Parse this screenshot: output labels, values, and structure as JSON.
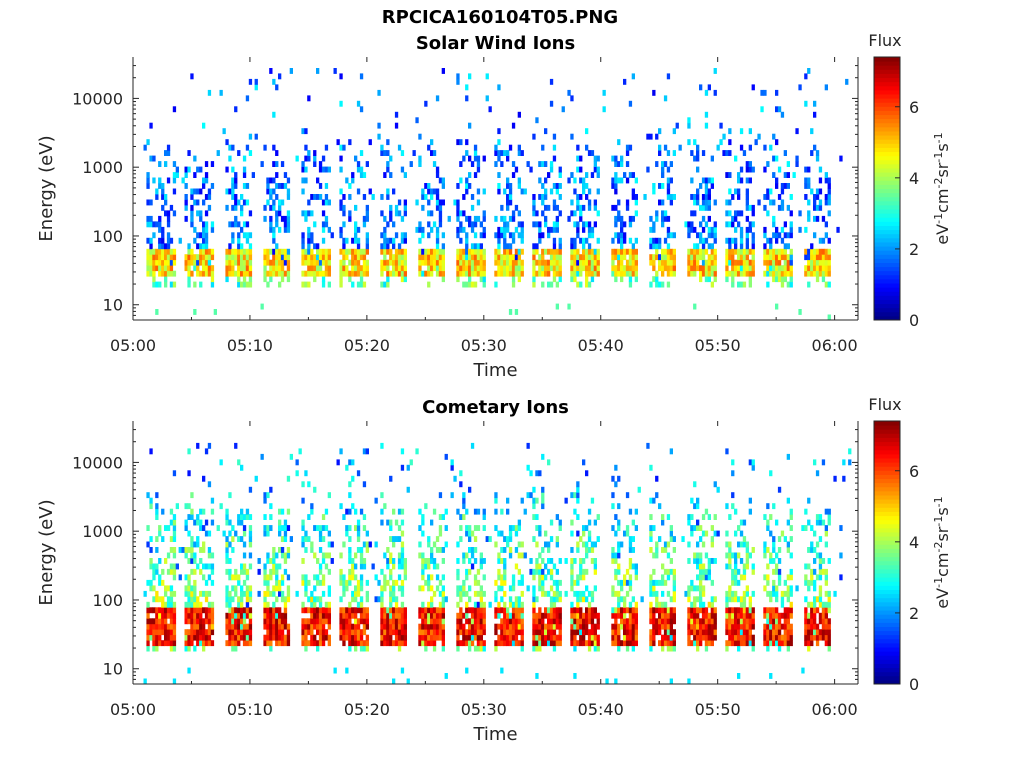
{
  "figure": {
    "title": "RPCICA160104T05.PNG"
  },
  "colors": {
    "background": "#ffffff",
    "axis": "#262626",
    "colormap": [
      "#00008f",
      "#0000ff",
      "#007fff",
      "#00ffff",
      "#7fff7f",
      "#ffff00",
      "#ff7f00",
      "#ff0000",
      "#7f0000"
    ]
  },
  "chart_data": [
    {
      "type": "heatmap",
      "title": "Solar Wind Ions",
      "xlabel": "Time",
      "ylabel": "Energy (eV)",
      "x_range": [
        "05:00",
        "06:02"
      ],
      "x_ticks": [
        "05:00",
        "05:10",
        "05:20",
        "05:30",
        "05:40",
        "05:50",
        "06:00"
      ],
      "y_scale": "log",
      "y_range": [
        6,
        40000
      ],
      "y_ticks": [
        "10",
        "100",
        "1000",
        "10000"
      ],
      "colorbar": {
        "label": "eV-1cm-2sr-1s-1",
        "header": "Flux",
        "ticks": [
          "0",
          "2",
          "4",
          "6"
        ],
        "range": [
          0,
          7.4
        ]
      },
      "pattern": {
        "period_min": 3.3,
        "first_burst_min": 2.0,
        "peak_energy_eV": 40,
        "peak_flux_range": [
          3.8,
          5.8
        ],
        "upper_energy_eV": 30000,
        "background_flux_range": [
          0.8,
          2.8
        ],
        "low_energy_streaks_eV": 7,
        "low_energy_streak_flux": 3.4
      }
    },
    {
      "type": "heatmap",
      "title": "Cometary Ions",
      "xlabel": "Time",
      "ylabel": "Energy (eV)",
      "x_range": [
        "05:00",
        "06:02"
      ],
      "x_ticks": [
        "05:00",
        "05:10",
        "05:20",
        "05:30",
        "05:40",
        "05:50",
        "06:00"
      ],
      "y_scale": "log",
      "y_range": [
        6,
        40000
      ],
      "y_ticks": [
        "10",
        "100",
        "1000",
        "10000"
      ],
      "colorbar": {
        "label": "eV-1cm-2sr-1s-1",
        "header": "Flux",
        "ticks": [
          "0",
          "2",
          "4",
          "6"
        ],
        "range": [
          0,
          7.4
        ]
      },
      "pattern": {
        "period_min": 3.3,
        "first_burst_min": 2.0,
        "peak_energy_eV": 40,
        "peak_flux_range": [
          5.5,
          7.3
        ],
        "upper_energy_eV": 20000,
        "background_flux_range": [
          1.0,
          3.2
        ],
        "low_energy_streaks_eV": 7,
        "low_energy_streak_flux": 2.6
      }
    }
  ]
}
